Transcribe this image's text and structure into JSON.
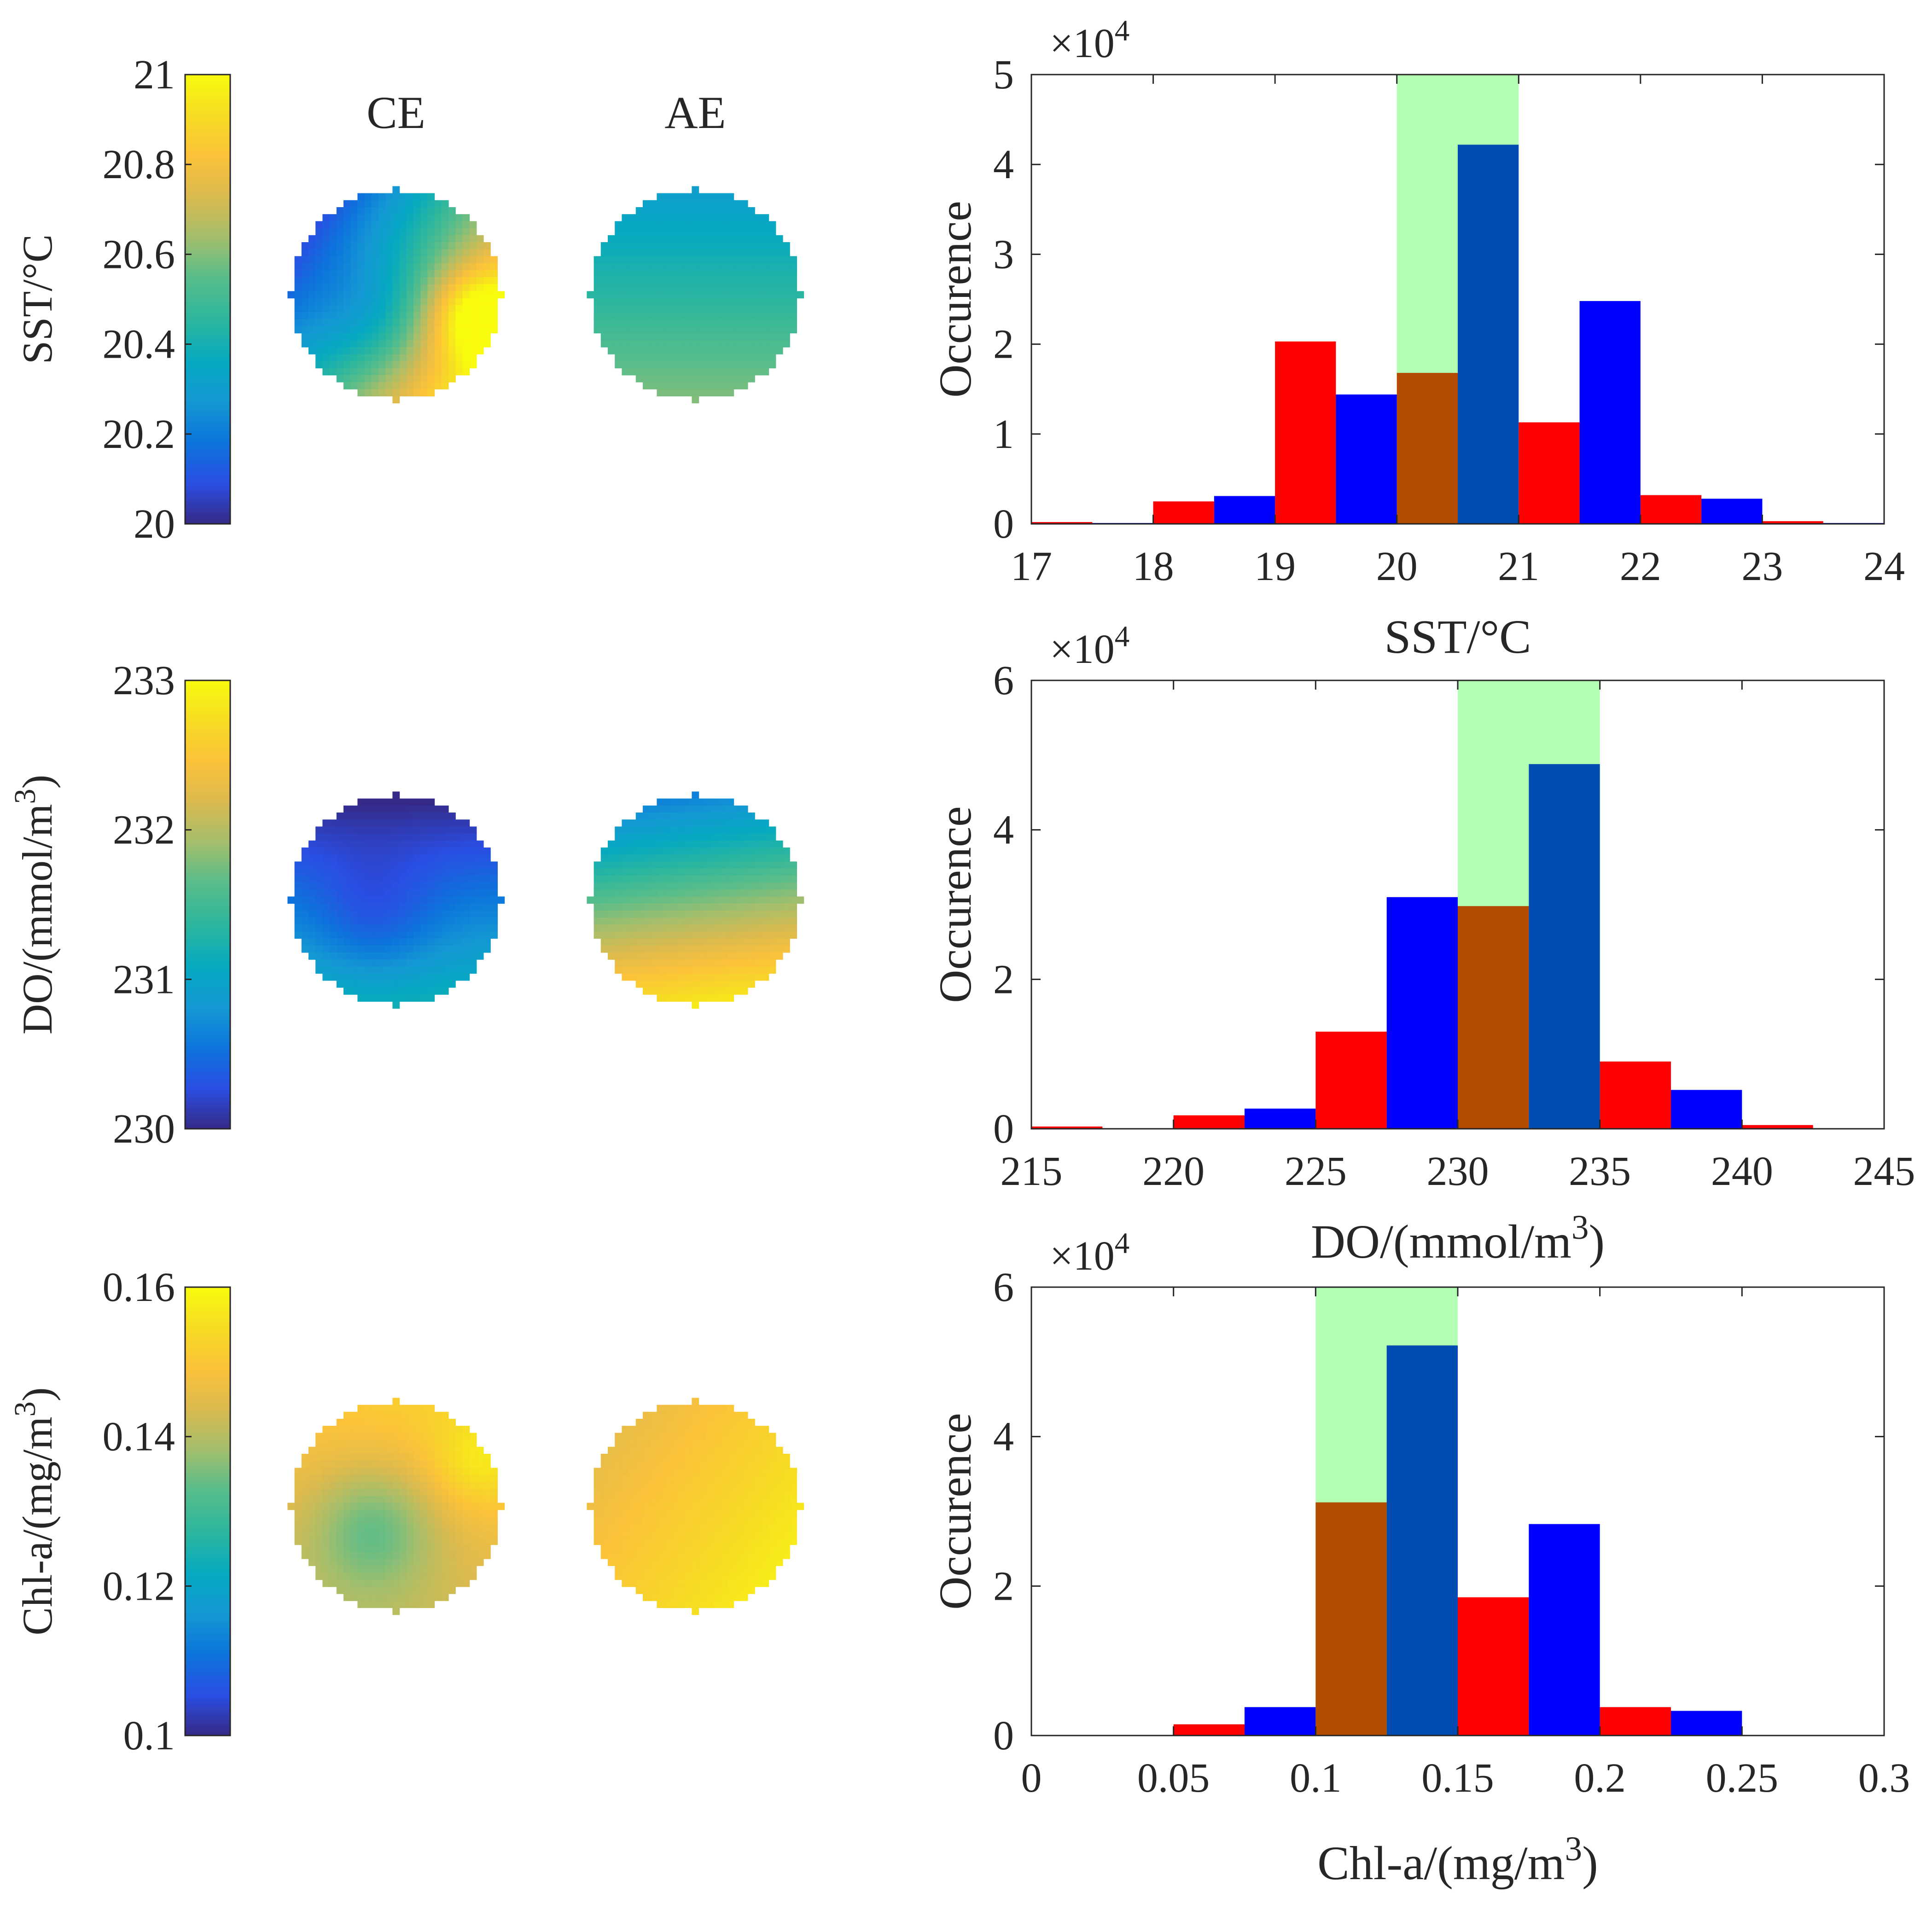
{
  "colors": {
    "red_bar": "#ff0000",
    "blue_bar": "#0000ff",
    "green_shade": "#b3ffb3",
    "overlap_brown": "#b34c00",
    "overlap_blue": "#004cb3",
    "axis": "#262626",
    "parula": [
      "#352a87",
      "#2a4ee3",
      "#0d74dc",
      "#1498d4",
      "#06a9c1",
      "#2ab69f",
      "#59bd8a",
      "#a5be6b",
      "#dbba4e",
      "#fcc23a",
      "#f6dc23",
      "#f9fb0e"
    ]
  },
  "columns": {
    "ce": "CE",
    "ae": "AE"
  },
  "maps": [
    {
      "colorbar": {
        "label": "SST/°C",
        "min": 20,
        "max": 21,
        "ticks": [
          "20",
          "20.2",
          "20.4",
          "20.6",
          "20.8",
          "21"
        ]
      },
      "ce_field": {
        "base": 0.52,
        "gx": 0.35,
        "gy": -0.25,
        "hot": 0.3,
        "hotX": 0.75,
        "hotY": -0.2,
        "cool": -0.15
      },
      "ae_field": {
        "base": 0.45,
        "gx": 0.0,
        "gy": -0.15,
        "hot": 0.0,
        "hotX": 0.0,
        "hotY": 0.0,
        "cool": 0.0
      }
    },
    {
      "colorbar": {
        "label": "DO/(mmol/m^3)",
        "min": 230,
        "max": 233,
        "ticks": [
          "230",
          "231",
          "232",
          "233"
        ]
      },
      "ce_field": {
        "base": 0.2,
        "gx": 0.0,
        "gy": -0.22,
        "hot": 0.0,
        "hotX": 0.0,
        "hotY": 0.0,
        "cool": -0.12
      },
      "ae_field": {
        "base": 0.58,
        "gx": 0.05,
        "gy": -0.38,
        "hot": 0.0,
        "hotX": 0.0,
        "hotY": 0.0,
        "cool": 0.0
      }
    },
    {
      "colorbar": {
        "label": "Chl-a/(mg/m^3)",
        "min": 0.1,
        "max": 0.16,
        "ticks": [
          "0.1",
          "0.12",
          "0.14",
          "0.16"
        ]
      },
      "ce_field": {
        "base": 0.78,
        "gx": 0.02,
        "gy": 0.08,
        "hot": 0.12,
        "hotX": 0.75,
        "hotY": 0.4,
        "cool": -0.2
      },
      "ae_field": {
        "base": 0.86,
        "gx": 0.08,
        "gy": -0.06,
        "hot": 0.0,
        "hotX": 0.0,
        "hotY": 0.0,
        "cool": 0.0
      }
    }
  ],
  "chart_data": [
    {
      "type": "bar",
      "title": "",
      "xlabel": "SST/°C",
      "ylabel": "Occurence",
      "y_multiplier": "×10^4",
      "xlim": [
        17,
        24
      ],
      "ylim": [
        0,
        5
      ],
      "xticks": [
        "17",
        "18",
        "19",
        "20",
        "21",
        "22",
        "23",
        "24"
      ],
      "yticks": [
        "0",
        "1",
        "2",
        "3",
        "4",
        "5"
      ],
      "shaded_range": [
        20,
        21
      ],
      "series": [
        {
          "name": "CE",
          "color": "red",
          "bins": [
            [
              17,
              17.5,
              0.02
            ],
            [
              18,
              18.5,
              0.25
            ],
            [
              19,
              19.5,
              2.03
            ],
            [
              20,
              20.5,
              1.68
            ],
            [
              21,
              21.5,
              1.13
            ],
            [
              22,
              22.5,
              0.32
            ],
            [
              23,
              23.5,
              0.03
            ]
          ]
        },
        {
          "name": "AE",
          "color": "blue",
          "bins": [
            [
              17.5,
              18,
              0.01
            ],
            [
              18.5,
              19,
              0.31
            ],
            [
              19.5,
              20,
              1.44
            ],
            [
              20.5,
              21,
              4.22
            ],
            [
              21.5,
              22,
              2.48
            ],
            [
              22.5,
              23,
              0.28
            ],
            [
              23.5,
              24,
              0.01
            ]
          ]
        }
      ]
    },
    {
      "type": "bar",
      "title": "",
      "xlabel": "DO/(mmol/m^3)",
      "ylabel": "Occurence",
      "y_multiplier": "×10^4",
      "xlim": [
        215,
        245
      ],
      "ylim": [
        0,
        6
      ],
      "xticks": [
        "215",
        "220",
        "225",
        "230",
        "235",
        "240",
        "245"
      ],
      "yticks": [
        "0",
        "2",
        "4",
        "6"
      ],
      "shaded_range": [
        230,
        235
      ],
      "series": [
        {
          "name": "CE",
          "color": "red",
          "bins": [
            [
              215,
              217.5,
              0.03
            ],
            [
              220,
              222.5,
              0.18
            ],
            [
              225,
              227.5,
              1.3
            ],
            [
              230,
              232.5,
              2.98
            ],
            [
              235,
              237.5,
              0.9
            ],
            [
              240,
              242.5,
              0.05
            ]
          ]
        },
        {
          "name": "AE",
          "color": "blue",
          "bins": [
            [
              217.5,
              220,
              0.0
            ],
            [
              222.5,
              225,
              0.27
            ],
            [
              227.5,
              230,
              3.1
            ],
            [
              232.5,
              235,
              4.88
            ],
            [
              237.5,
              240,
              0.52
            ],
            [
              242.5,
              245,
              0.0
            ]
          ]
        }
      ]
    },
    {
      "type": "bar",
      "title": "",
      "xlabel": "Chl-a/(mg/m^3)",
      "ylabel": "Occurence",
      "y_multiplier": "×10^4",
      "xlim": [
        0,
        0.3
      ],
      "ylim": [
        0,
        6
      ],
      "xticks": [
        "0",
        "0.05",
        "0.1",
        "0.15",
        "0.2",
        "0.25",
        "0.3"
      ],
      "yticks": [
        "0",
        "2",
        "4",
        "6"
      ],
      "shaded_range": [
        0.1,
        0.15
      ],
      "series": [
        {
          "name": "CE",
          "color": "red",
          "bins": [
            [
              0.05,
              0.075,
              0.15
            ],
            [
              0.1,
              0.125,
              3.12
            ],
            [
              0.15,
              0.175,
              1.85
            ],
            [
              0.2,
              0.225,
              0.38
            ]
          ]
        },
        {
          "name": "AE",
          "color": "blue",
          "bins": [
            [
              0.075,
              0.1,
              0.38
            ],
            [
              0.125,
              0.15,
              5.22
            ],
            [
              0.175,
              0.2,
              2.83
            ],
            [
              0.225,
              0.25,
              0.33
            ]
          ]
        }
      ]
    }
  ]
}
